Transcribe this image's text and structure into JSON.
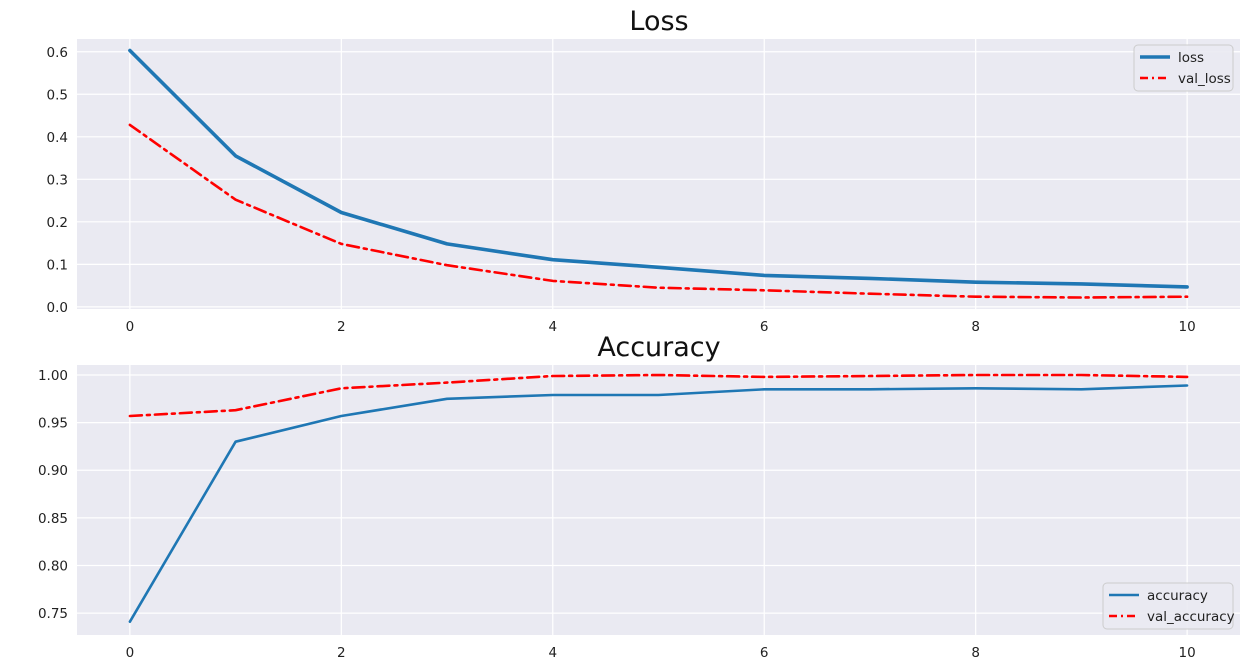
{
  "chart_data": [
    {
      "type": "line",
      "title": "Loss",
      "xlabel": "",
      "ylabel": "",
      "xlim": [
        -0.5,
        10.5
      ],
      "ylim": [
        -0.005,
        0.63
      ],
      "xticks": [
        0,
        2,
        4,
        6,
        8,
        10
      ],
      "yticks": [
        0.0,
        0.1,
        0.2,
        0.3,
        0.4,
        0.5,
        0.6
      ],
      "ytick_decimals": 1,
      "grid": true,
      "legend_position": "top-right",
      "x": [
        0,
        1,
        2,
        3,
        4,
        5,
        6,
        7,
        8,
        9,
        10
      ],
      "series": [
        {
          "name": "loss",
          "values": [
            0.603,
            0.355,
            0.222,
            0.148,
            0.111,
            0.093,
            0.074,
            0.067,
            0.058,
            0.054,
            0.047
          ],
          "color": "#1f77b4",
          "style": "solid",
          "weight": "heavy"
        },
        {
          "name": "val_loss",
          "values": [
            0.428,
            0.252,
            0.148,
            0.098,
            0.061,
            0.045,
            0.039,
            0.031,
            0.024,
            0.022,
            0.024
          ],
          "color": "#ff0000",
          "style": "dashdot",
          "weight": "normal"
        }
      ]
    },
    {
      "type": "line",
      "title": "Accuracy",
      "xlabel": "",
      "ylabel": "",
      "xlim": [
        -0.5,
        10.5
      ],
      "ylim": [
        0.727,
        1.0105
      ],
      "xticks": [
        0,
        2,
        4,
        6,
        8,
        10
      ],
      "yticks": [
        0.75,
        0.8,
        0.85,
        0.9,
        0.95,
        1.0
      ],
      "ytick_decimals": 2,
      "grid": true,
      "legend_position": "bottom-right",
      "x": [
        0,
        1,
        2,
        3,
        4,
        5,
        6,
        7,
        8,
        9,
        10
      ],
      "series": [
        {
          "name": "accuracy",
          "values": [
            0.741,
            0.93,
            0.957,
            0.975,
            0.979,
            0.979,
            0.985,
            0.985,
            0.986,
            0.985,
            0.989
          ],
          "color": "#1f77b4",
          "style": "solid",
          "weight": "normal"
        },
        {
          "name": "val_accuracy",
          "values": [
            0.957,
            0.963,
            0.986,
            0.992,
            0.999,
            1.0,
            0.998,
            0.999,
            1.0,
            1.0,
            0.998
          ],
          "color": "#ff0000",
          "style": "dashdot",
          "weight": "normal"
        }
      ]
    }
  ],
  "theme": {
    "plot_background": "#eaeaf2",
    "grid_color": "#ffffff"
  }
}
